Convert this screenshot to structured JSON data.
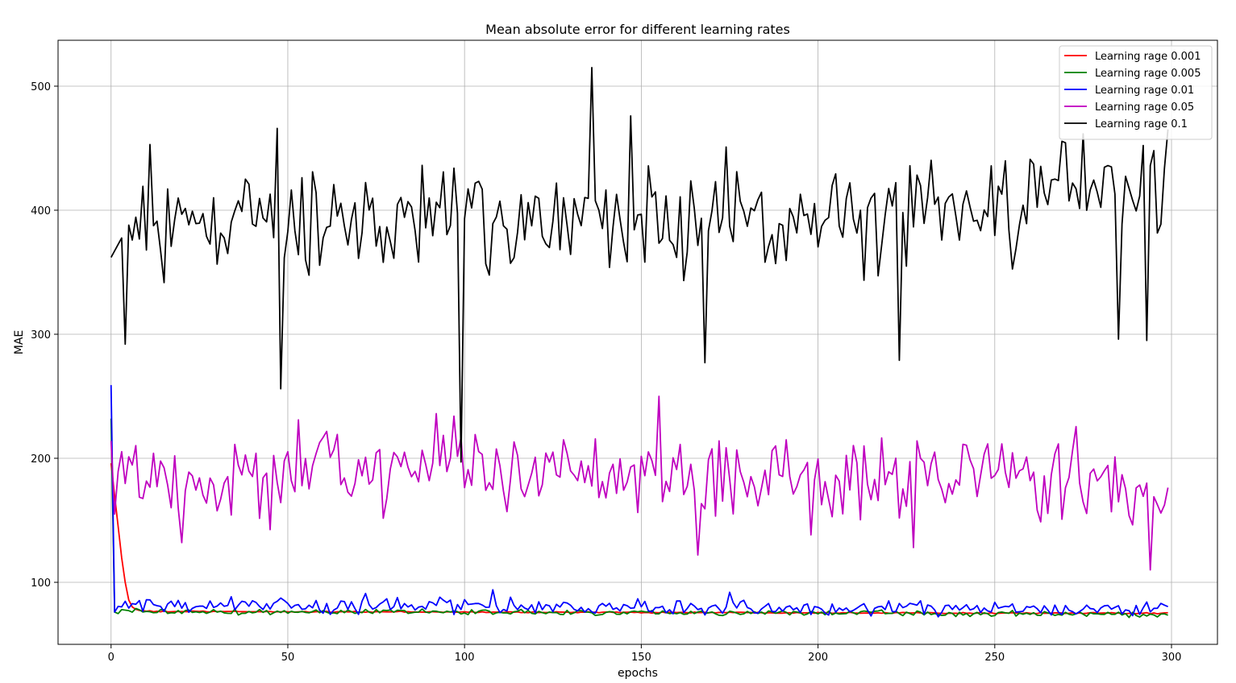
{
  "chart_data": {
    "type": "line",
    "title": "Mean absolute error for different learning rates",
    "xlabel": "epochs",
    "ylabel": "MAE",
    "xlim": [
      -15,
      313
    ],
    "ylim": [
      50,
      537
    ],
    "xticks": [
      0,
      50,
      100,
      150,
      200,
      250,
      300
    ],
    "yticks": [
      100,
      200,
      300,
      400,
      500
    ],
    "grid": true,
    "legend_position": "top-right",
    "n_points": 300,
    "series": [
      {
        "name": "Learning rage 0.001",
        "color": "#ff0000",
        "anchors": [
          [
            0,
            196
          ],
          [
            1,
            170
          ],
          [
            2,
            145
          ],
          [
            3,
            120
          ],
          [
            4,
            100
          ],
          [
            5,
            86
          ],
          [
            6,
            80
          ],
          [
            8,
            77
          ],
          [
            12,
            76.5
          ],
          [
            100,
            76
          ],
          [
            200,
            75.5
          ],
          [
            299,
            75
          ]
        ],
        "noise": 0.4
      },
      {
        "name": "Learning rage 0.005",
        "color": "#008000",
        "anchors": [
          [
            0,
            232
          ],
          [
            1,
            76
          ],
          [
            3,
            78
          ],
          [
            10,
            76
          ],
          [
            100,
            76
          ],
          [
            200,
            75.5
          ],
          [
            299,
            74
          ]
        ],
        "noise": 2.0
      },
      {
        "name": "Learning rage 0.01",
        "color": "#0000ff",
        "anchors": [
          [
            0,
            259
          ],
          [
            1,
            76
          ],
          [
            3,
            82
          ],
          [
            10,
            82
          ],
          [
            100,
            81
          ],
          [
            200,
            79
          ],
          [
            299,
            78
          ]
        ],
        "noise": 5.0,
        "spikes": [
          [
            108,
            94
          ],
          [
            72,
            91
          ],
          [
            175,
            92
          ],
          [
            93,
            88
          ]
        ]
      },
      {
        "name": "Learning rage 0.05",
        "color": "#bf00bf",
        "anchors": [
          [
            0,
            214
          ],
          [
            1,
            155
          ],
          [
            3,
            190
          ],
          [
            10,
            185
          ],
          [
            100,
            188
          ],
          [
            200,
            188
          ],
          [
            299,
            182
          ]
        ],
        "noise": 30,
        "spikes": [
          [
            155,
            250
          ],
          [
            166,
            122
          ],
          [
            294,
            110
          ],
          [
            227,
            128
          ],
          [
            53,
            231
          ],
          [
            92,
            236
          ],
          [
            97,
            234
          ],
          [
            20,
            132
          ]
        ]
      },
      {
        "name": "Learning rage 0.1",
        "color": "#000000",
        "anchors": [
          [
            0,
            362
          ],
          [
            5,
            388
          ],
          [
            10,
            390
          ],
          [
            100,
            392
          ],
          [
            200,
            392
          ],
          [
            299,
            421
          ]
        ],
        "noise": 38,
        "spikes": [
          [
            136,
            515
          ],
          [
            48,
            256
          ],
          [
            99,
            197
          ],
          [
            168,
            277
          ],
          [
            47,
            466
          ],
          [
            147,
            476
          ],
          [
            4,
            292
          ],
          [
            223,
            279
          ],
          [
            285,
            296
          ],
          [
            293,
            295
          ],
          [
            11,
            453
          ]
        ]
      }
    ]
  }
}
